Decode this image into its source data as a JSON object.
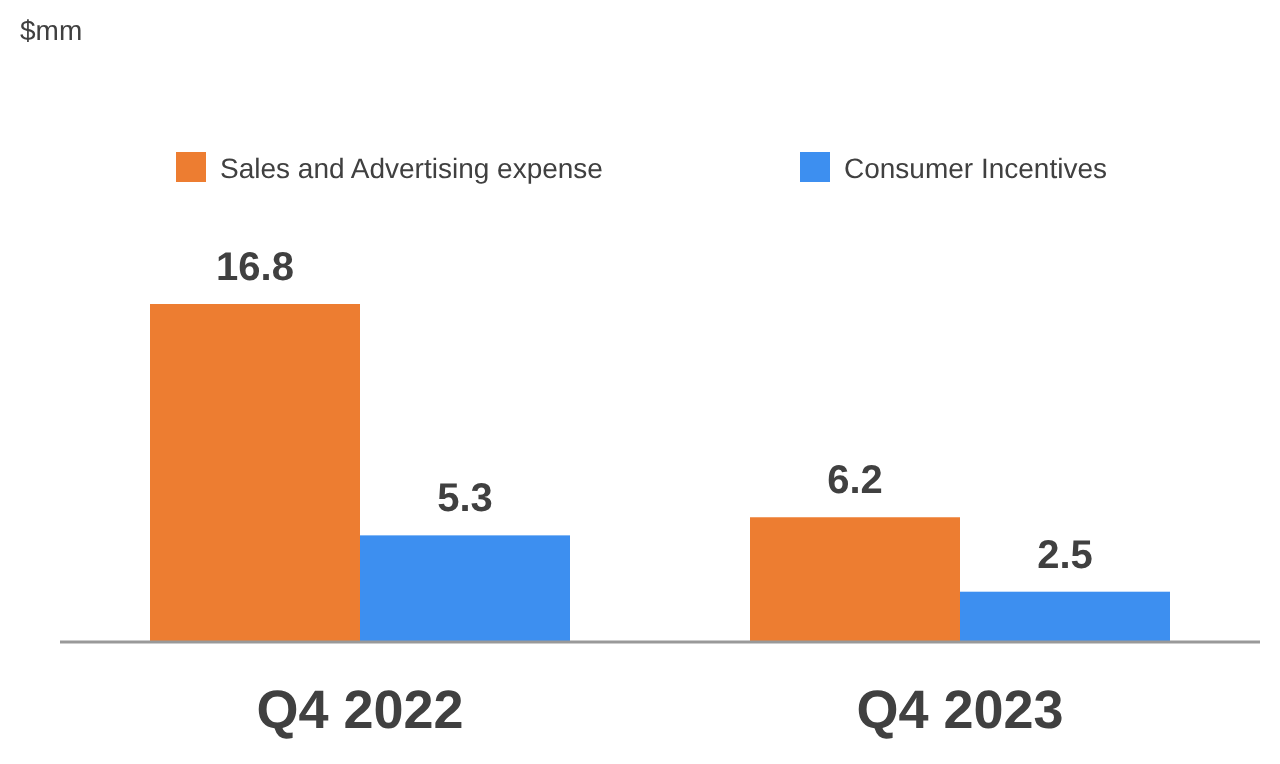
{
  "chart_data": {
    "type": "bar",
    "annotations": [
      "$mm"
    ],
    "categories": [
      "Q4 2022",
      "Q4 2023"
    ],
    "series": [
      {
        "name": "Sales and Advertising expense",
        "color": "#ed7d31",
        "values": [
          16.8,
          6.2
        ]
      },
      {
        "name": "Consumer Incentives",
        "color": "#3d8ff0",
        "values": [
          5.3,
          2.5
        ]
      }
    ],
    "data_labels": true,
    "legend": "top right",
    "grid": false
  }
}
